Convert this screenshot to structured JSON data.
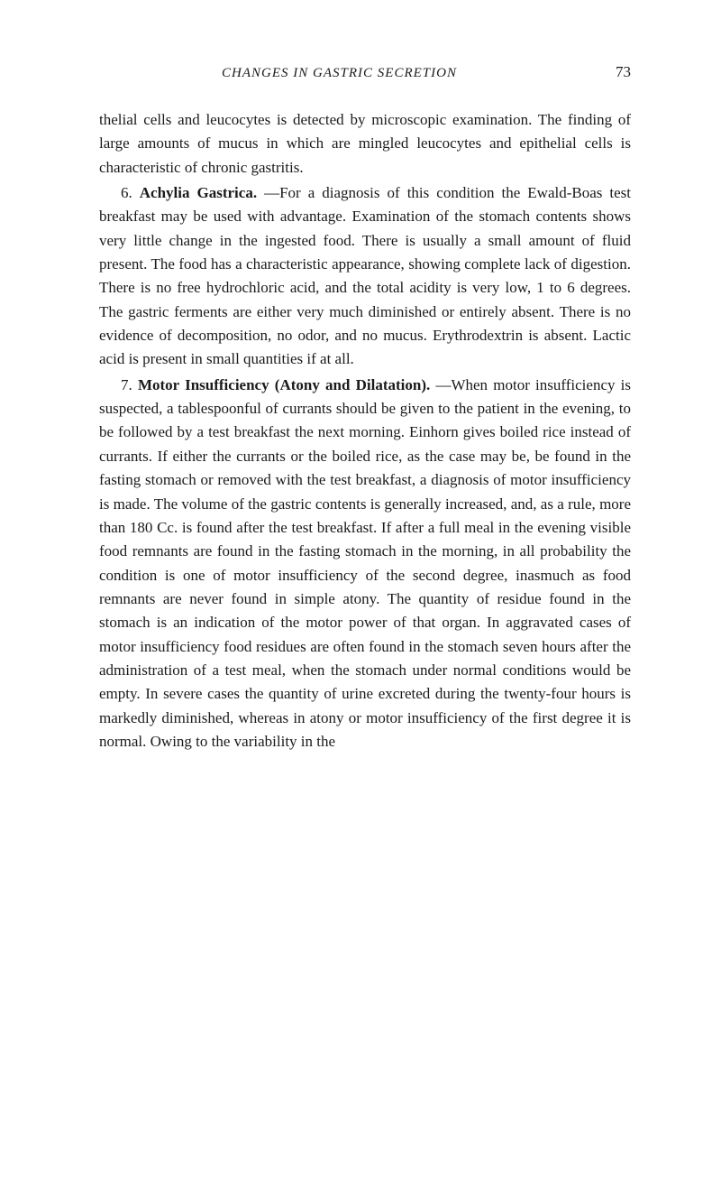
{
  "header": {
    "running_title": "CHANGES IN GASTRIC SECRETION",
    "page_number": "73"
  },
  "paragraphs": {
    "p1": "thelial cells and leucocytes is detected by microscopic examination. The finding of large amounts of mucus in which are mingled leucocytes and epithelial cells is characteristic of chronic gastritis.",
    "p2_num": "6.",
    "p2_title": "Achylia Gastrica.",
    "p2_text": "—For a diagnosis of this condition the Ewald-Boas test breakfast may be used with advantage. Examination of the stomach contents shows very little change in the ingested food. There is usually a small amount of fluid present. The food has a characteristic appearance, showing complete lack of digestion. There is no free hydrochloric acid, and the total acidity is very low, 1 to 6 degrees. The gastric ferments are either very much diminished or entirely absent. There is no evidence of decomposition, no odor, and no mucus. Erythrodextrin is absent. Lactic acid is present in small quantities if at all.",
    "p3_num": "7.",
    "p3_title": "Motor Insufficiency (Atony and Dilatation).",
    "p3_text": "—When motor insufficiency is suspected, a tablespoonful of currants should be given to the patient in the evening, to be followed by a test breakfast the next morning. Einhorn gives boiled rice instead of currants. If either the currants or the boiled rice, as the case may be, be found in the fasting stomach or removed with the test breakfast, a diagnosis of motor insufficiency is made. The volume of the gastric contents is generally increased, and, as a rule, more than 180 Cc. is found after the test breakfast. If after a full meal in the evening visible food remnants are found in the fasting stomach in the morning, in all probability the condition is one of motor insufficiency of the second degree, inasmuch as food remnants are never found in simple atony. The quantity of residue found in the stomach is an indication of the motor power of that organ. In aggravated cases of motor insufficiency food residues are often found in the stomach seven hours after the administration of a test meal, when the stomach under normal conditions would be empty. In severe cases the quantity of urine excreted during the twenty-four hours is markedly diminished, whereas in atony or motor insufficiency of the first degree it is normal. Owing to the variability in the"
  },
  "styles": {
    "background_color": "#ffffff",
    "text_color": "#1a1a1a",
    "body_fontsize": 17,
    "header_fontsize": 15,
    "line_height": 1.55,
    "font_family": "Georgia, 'Times New Roman', serif"
  }
}
